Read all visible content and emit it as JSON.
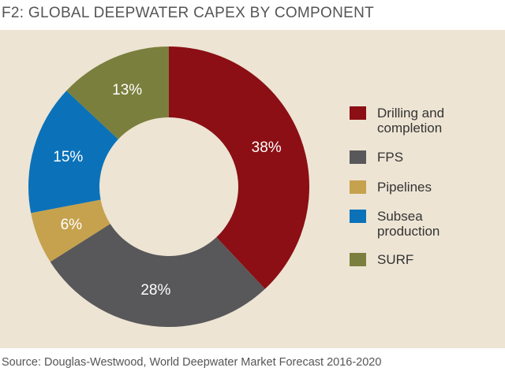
{
  "chart_data": {
    "type": "donut",
    "title": "F2: GLOBAL DEEPWATER CAPEX BY COMPONENT",
    "source": "Source: Douglas-Westwood, World Deepwater Market Forecast 2016-2020",
    "categories": [
      "Drilling and completion",
      "FPS",
      "Pipelines",
      "Subsea production",
      "SURF"
    ],
    "values": [
      38,
      28,
      6,
      15,
      13
    ],
    "value_labels": [
      "38%",
      "28%",
      "6%",
      "15%",
      "13%"
    ],
    "colors": [
      "#8b0f14",
      "#58585a",
      "#c6a24e",
      "#0b72b9",
      "#7b7f3d"
    ]
  }
}
